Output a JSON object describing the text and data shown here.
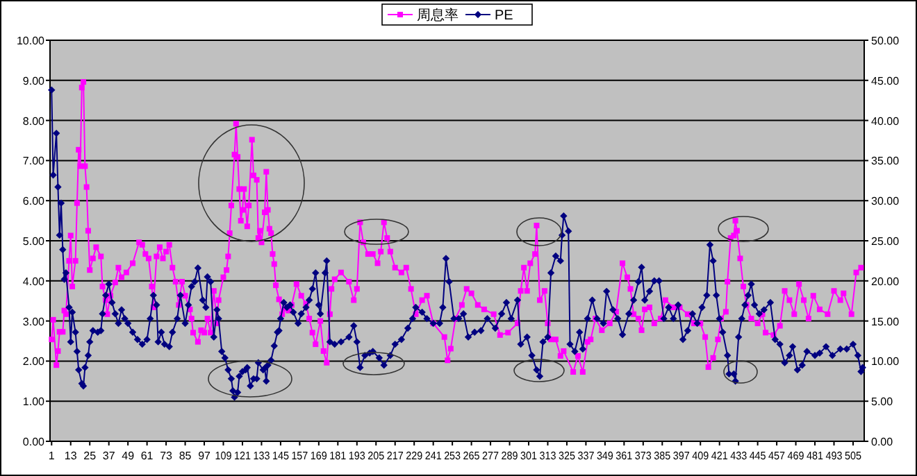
{
  "chart_data": {
    "type": "line",
    "xlim": [
      0,
      512
    ],
    "xticks": [
      1,
      13,
      25,
      37,
      49,
      61,
      73,
      85,
      97,
      109,
      121,
      133,
      145,
      157,
      169,
      181,
      193,
      205,
      217,
      229,
      241,
      253,
      265,
      277,
      289,
      301,
      313,
      325,
      337,
      349,
      361,
      373,
      385,
      397,
      409,
      421,
      433,
      445,
      457,
      469,
      481,
      493,
      505
    ],
    "ylim": [
      0,
      10
    ],
    "yticks": [
      {
        "value": 0,
        "label": "0.00"
      },
      {
        "value": 1,
        "label": "1.00"
      },
      {
        "value": 2,
        "label": "2.00"
      },
      {
        "value": 3,
        "label": "3.00"
      },
      {
        "value": 4,
        "label": "4.00"
      },
      {
        "value": 5,
        "label": "5.00"
      },
      {
        "value": 6,
        "label": "6.00"
      },
      {
        "value": 7,
        "label": "7.00"
      },
      {
        "value": 8,
        "label": "8.00"
      },
      {
        "value": 9,
        "label": "9.00"
      },
      {
        "value": 10,
        "label": "10.00"
      }
    ],
    "y2lim": [
      0,
      50
    ],
    "y2ticks": [
      {
        "value": 0,
        "label": "0.00"
      },
      {
        "value": 5,
        "label": "5.00"
      },
      {
        "value": 10,
        "label": "10.00"
      },
      {
        "value": 15,
        "label": "15.00"
      },
      {
        "value": 20,
        "label": "20.00"
      },
      {
        "value": 25,
        "label": "25.00"
      },
      {
        "value": 30,
        "label": "30.00"
      },
      {
        "value": 35,
        "label": "35.00"
      },
      {
        "value": 40,
        "label": "40.00"
      },
      {
        "value": 45,
        "label": "45.00"
      },
      {
        "value": 50,
        "label": "50.00"
      }
    ],
    "grid": "y",
    "legend": "top",
    "series": [
      {
        "name": "周息率",
        "color": "#ff00ff",
        "marker": "square",
        "x": [
          1,
          2,
          4,
          5,
          6,
          8,
          9,
          10,
          12,
          13,
          14,
          16,
          17,
          18,
          19,
          20,
          21,
          22,
          23,
          24,
          25,
          27,
          29,
          32,
          33,
          35,
          36,
          38,
          41,
          43,
          45,
          48,
          52,
          56,
          58,
          60,
          62,
          64,
          65,
          67,
          69,
          71,
          73,
          75,
          77,
          79,
          81,
          83,
          85,
          88,
          89,
          90,
          93,
          95,
          97,
          99,
          101,
          103,
          105,
          106,
          109,
          111,
          112,
          113,
          114,
          116,
          117,
          118,
          119,
          120,
          121,
          122,
          124,
          125,
          127,
          128,
          130,
          131,
          132,
          133,
          135,
          136,
          137,
          138,
          139,
          140,
          141,
          142,
          144,
          146,
          148,
          150,
          152,
          155,
          158,
          161,
          163,
          165,
          167,
          170,
          172,
          174,
          176,
          177,
          179,
          183,
          188,
          191,
          193,
          195,
          197,
          200,
          203,
          206,
          208,
          210,
          212,
          214,
          217,
          221,
          224,
          227,
          230,
          234,
          237,
          241,
          248,
          250,
          252,
          255,
          259,
          262,
          265,
          269,
          273,
          279,
          283,
          288,
          294,
          296,
          298,
          300,
          302,
          305,
          306,
          308,
          311,
          313,
          315,
          318,
          321,
          323,
          329,
          332,
          335,
          338,
          340,
          343,
          347,
          352,
          356,
          360,
          363,
          365,
          367,
          370,
          372,
          374,
          377,
          380,
          384,
          387,
          392,
          396,
          401,
          405,
          409,
          412,
          414,
          417,
          420,
          422,
          425,
          426,
          428,
          430,
          431,
          432,
          434,
          436,
          438,
          441,
          445,
          448,
          450,
          455,
          459,
          462,
          465,
          468,
          471,
          474,
          477,
          480,
          484,
          489,
          493,
          497,
          499,
          504,
          507,
          510
        ],
        "values": [
          2.54,
          3.03,
          1.9,
          2.25,
          2.73,
          2.73,
          3.26,
          3.17,
          4.5,
          5.13,
          3.86,
          4.5,
          5.94,
          7.27,
          6.86,
          8.82,
          8.96,
          6.86,
          6.34,
          5.25,
          4.27,
          4.56,
          4.84,
          4.61,
          3.86,
          3.52,
          3.17,
          3.63,
          3.96,
          4.33,
          4.09,
          4.21,
          4.44,
          4.96,
          4.9,
          4.67,
          4.56,
          3.86,
          3.34,
          4.61,
          4.84,
          4.56,
          4.73,
          4.9,
          4.33,
          3.98,
          3.4,
          3.98,
          3.63,
          3.29,
          3.06,
          2.71,
          2.48,
          2.77,
          2.71,
          3.06,
          2.71,
          3.75,
          2.94,
          3.52,
          4.09,
          4.27,
          4.61,
          5.19,
          5.88,
          7.15,
          7.92,
          7.09,
          6.29,
          5.5,
          5.77,
          6.29,
          5.36,
          5.88,
          7.52,
          6.63,
          6.52,
          5.07,
          5.25,
          4.96,
          5.71,
          6.72,
          5.77,
          5.3,
          5.19,
          4.67,
          4.42,
          3.89,
          3.54,
          3.17,
          3.31,
          3.26,
          3.4,
          3.92,
          3.63,
          3.43,
          3.06,
          2.71,
          2.42,
          3.0,
          2.25,
          1.96,
          3.17,
          3.8,
          4.04,
          4.21,
          3.98,
          3.52,
          3.8,
          5.46,
          4.96,
          4.67,
          4.67,
          4.44,
          4.73,
          5.46,
          5.07,
          4.73,
          4.33,
          4.21,
          4.33,
          3.8,
          3.17,
          3.52,
          3.63,
          2.94,
          2.6,
          2.02,
          2.31,
          3.06,
          3.4,
          3.8,
          3.69,
          3.4,
          3.29,
          3.17,
          2.65,
          2.71,
          2.94,
          3.75,
          4.33,
          3.75,
          4.44,
          4.67,
          5.38,
          3.52,
          3.75,
          2.94,
          2.54,
          2.54,
          2.13,
          2.25,
          1.73,
          2.13,
          1.73,
          2.48,
          2.54,
          3.06,
          2.77,
          2.94,
          3.23,
          4.44,
          4.09,
          3.8,
          3.17,
          3.06,
          2.77,
          3.29,
          3.34,
          2.94,
          3.06,
          3.52,
          3.34,
          3.34,
          3.17,
          2.94,
          2.94,
          2.6,
          1.85,
          2.08,
          2.54,
          3.06,
          3.23,
          3.98,
          5.07,
          5.13,
          5.5,
          5.25,
          4.56,
          3.86,
          3.4,
          3.06,
          2.94,
          3.17,
          2.71,
          2.65,
          2.88,
          3.75,
          3.52,
          3.17,
          3.92,
          3.52,
          3.06,
          3.63,
          3.29,
          3.17,
          3.75,
          3.52,
          3.69,
          3.17,
          4.21,
          4.33
        ]
      },
      {
        "name": "PE",
        "color": "#000080",
        "marker": "diamond",
        "axis": "y2",
        "x": [
          1,
          2,
          4,
          5,
          6,
          7,
          8,
          9,
          10,
          12,
          13,
          14,
          16,
          17,
          18,
          20,
          21,
          22,
          24,
          25,
          27,
          30,
          32,
          33,
          35,
          37,
          39,
          41,
          43,
          45,
          47,
          49,
          52,
          55,
          58,
          61,
          63,
          65,
          67,
          68,
          70,
          72,
          75,
          77,
          80,
          82,
          85,
          87,
          89,
          91,
          93,
          96,
          98,
          99,
          101,
          103,
          105,
          106,
          108,
          110,
          112,
          114,
          115,
          116,
          118,
          119,
          121,
          123,
          124,
          126,
          128,
          130,
          131,
          134,
          135,
          136,
          137,
          139,
          141,
          143,
          144,
          145,
          147,
          149,
          151,
          153,
          156,
          158,
          161,
          163,
          165,
          167,
          169,
          170,
          173,
          174,
          176,
          179,
          183,
          188,
          191,
          193,
          195,
          198,
          201,
          203,
          207,
          210,
          214,
          217,
          221,
          225,
          228,
          230,
          234,
          237,
          241,
          245,
          247,
          249,
          251,
          254,
          257,
          260,
          263,
          267,
          271,
          275,
          280,
          284,
          287,
          290,
          294,
          296,
          300,
          303,
          306,
          308,
          310,
          313,
          315,
          318,
          321,
          322,
          323,
          326,
          327,
          330,
          333,
          335,
          338,
          341,
          344,
          348,
          350,
          354,
          357,
          360,
          364,
          367,
          370,
          372,
          374,
          377,
          380,
          383,
          386,
          389,
          392,
          395,
          398,
          401,
          404,
          407,
          410,
          413,
          415,
          417,
          419,
          421,
          423,
          426,
          427,
          430,
          431,
          433,
          435,
          437,
          439,
          441,
          443,
          446,
          449,
          453,
          456,
          459,
          462,
          465,
          467,
          470,
          473,
          476,
          481,
          484,
          488,
          492,
          497,
          501,
          505,
          508,
          510,
          511
        ],
        "values": [
          43.8,
          33.2,
          38.4,
          31.7,
          25.7,
          29.7,
          23.9,
          20.2,
          21.0,
          16.7,
          12.4,
          16.1,
          13.6,
          11.2,
          8.9,
          7.2,
          6.9,
          9.2,
          10.7,
          12.4,
          13.8,
          13.6,
          13.8,
          15.9,
          18.2,
          19.6,
          17.3,
          15.9,
          14.7,
          16.4,
          15.3,
          14.7,
          13.6,
          12.7,
          12.1,
          12.7,
          15.3,
          18.2,
          17.0,
          12.4,
          13.6,
          12.1,
          11.8,
          13.6,
          15.3,
          18.2,
          14.7,
          17.0,
          19.3,
          19.9,
          21.6,
          17.6,
          16.7,
          20.5,
          19.9,
          13.0,
          16.4,
          15.3,
          11.2,
          10.4,
          8.9,
          7.8,
          6.3,
          5.5,
          6.1,
          8.1,
          8.7,
          8.9,
          9.2,
          6.9,
          7.8,
          7.8,
          9.8,
          8.9,
          9.1,
          7.5,
          9.5,
          10.1,
          11.9,
          13.6,
          13.8,
          15.3,
          17.3,
          16.7,
          17.0,
          16.1,
          14.7,
          15.9,
          16.7,
          17.6,
          19.0,
          21.0,
          17.0,
          15.9,
          21.0,
          22.5,
          12.4,
          12.1,
          12.4,
          13.0,
          14.4,
          12.4,
          9.2,
          10.7,
          11.0,
          11.2,
          10.4,
          9.5,
          10.7,
          12.1,
          12.7,
          14.1,
          15.3,
          16.7,
          16.1,
          15.3,
          14.7,
          14.7,
          16.7,
          22.8,
          19.9,
          15.3,
          15.3,
          15.9,
          13.0,
          13.6,
          13.8,
          15.3,
          14.1,
          15.9,
          17.3,
          15.3,
          17.6,
          12.1,
          13.0,
          10.7,
          8.9,
          8.1,
          12.4,
          13.0,
          21.0,
          23.1,
          22.5,
          25.7,
          28.1,
          26.2,
          12.1,
          11.2,
          13.6,
          11.5,
          15.3,
          17.6,
          15.3,
          14.7,
          18.7,
          16.4,
          15.3,
          13.3,
          15.9,
          17.6,
          19.9,
          21.7,
          17.6,
          18.7,
          20.0,
          20.0,
          15.3,
          16.7,
          15.3,
          17.0,
          12.7,
          13.8,
          15.9,
          14.7,
          16.7,
          18.2,
          24.5,
          22.5,
          18.2,
          15.3,
          13.6,
          10.7,
          8.4,
          8.4,
          7.5,
          13.0,
          15.3,
          17.0,
          18.2,
          19.6,
          17.0,
          15.9,
          16.4,
          17.3,
          12.7,
          12.1,
          9.8,
          10.7,
          11.8,
          8.9,
          9.5,
          11.2,
          10.7,
          11.0,
          11.8,
          10.7,
          11.5,
          11.5,
          12.1,
          10.7,
          8.7,
          9.2
        ]
      }
    ]
  }
}
